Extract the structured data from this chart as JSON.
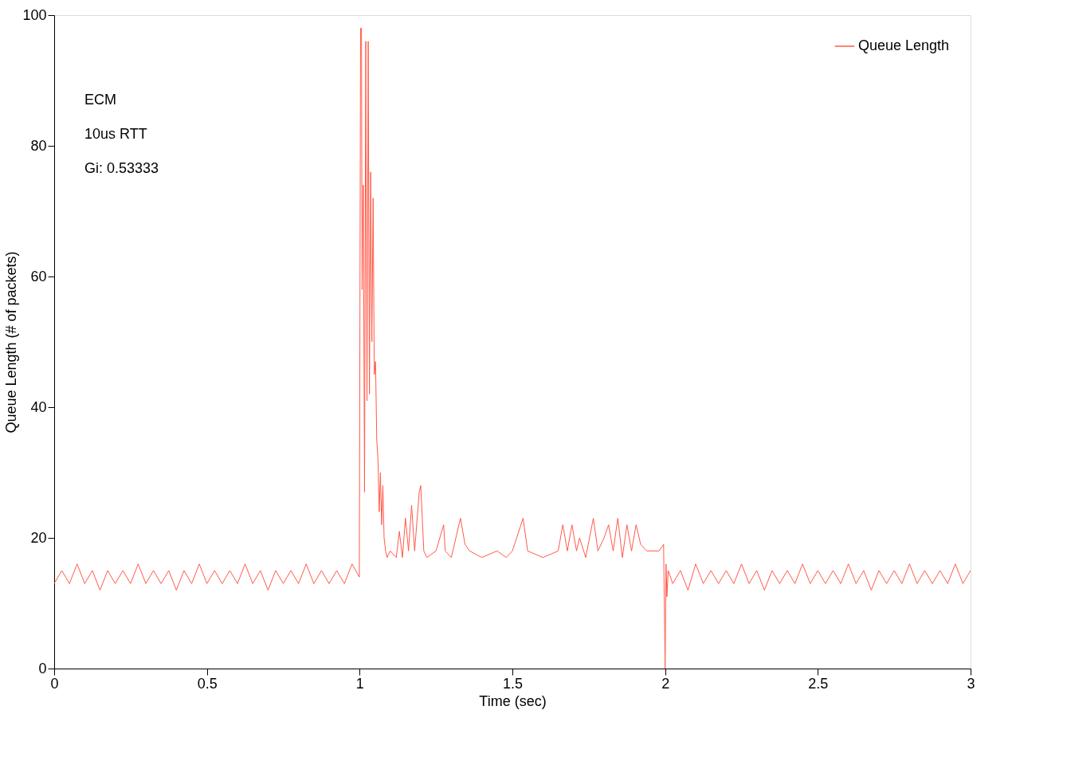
{
  "chart_data": {
    "type": "line",
    "xlabel": "Time (sec)",
    "ylabel": "Queue Length (# of packets)",
    "xlim": [
      0,
      3
    ],
    "xticks": [
      0,
      0.5,
      1,
      1.5,
      2,
      2.5,
      3
    ],
    "ylim": [
      0,
      100
    ],
    "yticks": [
      0,
      20,
      40,
      60,
      80,
      100
    ],
    "grid": false,
    "legend": "top right",
    "marker": "none",
    "line_style": "solid",
    "annotations": [
      "ECM",
      "10us RTT",
      "Gi: 0.53333"
    ],
    "series": [
      {
        "name": "Queue Length",
        "color": "#ff5a4a",
        "x": [
          0,
          0.025,
          0.05,
          0.075,
          0.1,
          0.125,
          0.15,
          0.175,
          0.2,
          0.225,
          0.25,
          0.275,
          0.3,
          0.325,
          0.35,
          0.375,
          0.4,
          0.425,
          0.45,
          0.475,
          0.5,
          0.525,
          0.55,
          0.575,
          0.6,
          0.625,
          0.65,
          0.675,
          0.7,
          0.725,
          0.75,
          0.775,
          0.8,
          0.825,
          0.85,
          0.875,
          0.9,
          0.925,
          0.95,
          0.975,
          0.999,
          1.003,
          1.006,
          1.008,
          1.012,
          1.016,
          1.02,
          1.024,
          1.028,
          1.032,
          1.036,
          1.04,
          1.044,
          1.048,
          1.052,
          1.056,
          1.06,
          1.064,
          1.068,
          1.072,
          1.076,
          1.08,
          1.085,
          1.09,
          1.1,
          1.12,
          1.13,
          1.14,
          1.15,
          1.16,
          1.17,
          1.18,
          1.195,
          1.2,
          1.21,
          1.22,
          1.25,
          1.275,
          1.28,
          1.3,
          1.33,
          1.345,
          1.36,
          1.4,
          1.45,
          1.48,
          1.5,
          1.535,
          1.55,
          1.6,
          1.65,
          1.665,
          1.68,
          1.695,
          1.71,
          1.72,
          1.74,
          1.765,
          1.78,
          1.8,
          1.815,
          1.83,
          1.845,
          1.86,
          1.875,
          1.89,
          1.905,
          1.92,
          1.94,
          1.98,
          1.995,
          2.0,
          2.003,
          2.006,
          2.01,
          2.025,
          2.05,
          2.075,
          2.1,
          2.125,
          2.15,
          2.175,
          2.2,
          2.225,
          2.25,
          2.275,
          2.3,
          2.325,
          2.35,
          2.375,
          2.4,
          2.425,
          2.45,
          2.475,
          2.5,
          2.525,
          2.55,
          2.575,
          2.6,
          2.625,
          2.65,
          2.675,
          2.7,
          2.725,
          2.75,
          2.775,
          2.8,
          2.825,
          2.85,
          2.875,
          2.9,
          2.925,
          2.95,
          2.975,
          3.0
        ],
        "values": [
          13,
          15,
          13,
          16,
          13,
          15,
          12,
          15,
          13,
          15,
          13,
          16,
          13,
          15,
          13,
          15,
          12,
          15,
          13,
          16,
          13,
          15,
          13,
          15,
          13,
          16,
          13,
          15,
          12,
          15,
          13,
          15,
          13,
          16,
          13,
          15,
          13,
          15,
          13,
          16,
          14,
          98,
          98,
          58,
          74,
          27,
          96,
          41,
          96,
          42,
          76,
          50,
          72,
          45,
          47,
          35,
          32,
          24,
          30,
          22,
          28,
          20,
          18,
          17,
          18,
          17,
          21,
          17,
          23,
          18,
          25,
          18,
          27,
          28,
          18,
          17,
          18,
          22,
          18,
          17,
          23,
          19,
          18,
          17,
          18,
          17,
          18,
          23,
          18,
          17,
          18,
          22,
          18,
          22,
          18,
          20,
          17,
          23,
          18,
          20,
          22,
          18,
          23,
          17,
          22,
          18,
          22,
          19,
          18,
          18,
          19,
          0,
          16,
          11,
          15,
          13,
          15,
          12,
          16,
          13,
          15,
          13,
          15,
          13,
          16,
          13,
          15,
          12,
          15,
          13,
          15,
          13,
          16,
          13,
          15,
          13,
          15,
          13,
          16,
          13,
          15,
          12,
          15,
          13,
          15,
          13,
          16,
          13,
          15,
          13,
          15,
          13,
          16,
          13,
          15
        ]
      }
    ]
  }
}
